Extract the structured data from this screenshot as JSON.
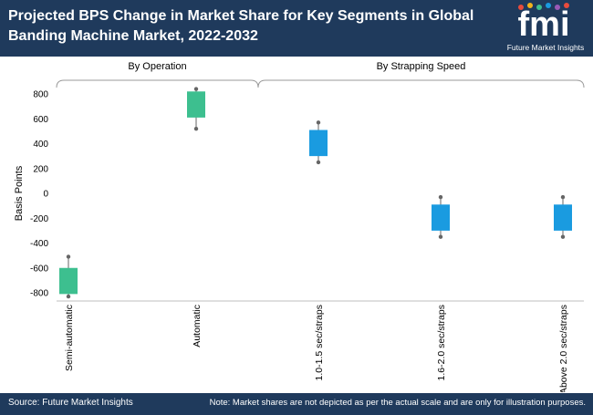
{
  "header": {
    "title": "Projected BPS Change in Market Share for Key Segments in Global Banding Machine Market, 2022-2032",
    "logo_text": "fmi",
    "logo_subtext": "Future Market Insights"
  },
  "footer": {
    "source": "Source: Future Market Insights",
    "note": "Note: Market shares are not depicted as per the actual scale and are only for illustration purposes."
  },
  "colors": {
    "header_bg": "#1f3a5c",
    "operation": "#3dbf8f",
    "strapping_speed": "#1a9be0",
    "whisker": "#7f7f7f"
  },
  "chart_data": {
    "type": "box",
    "title": "Projected BPS Change in Market Share for Key Segments in Global Banding Machine Market, 2022-2032",
    "ylabel": "Basis Points",
    "ylim": [
      -850,
      850
    ],
    "yticks": [
      800,
      600,
      400,
      200,
      0,
      -200,
      -400,
      -600,
      -800
    ],
    "groups": [
      {
        "name": "By Operation",
        "categories": [
          "Semi-automatic",
          "Automatic"
        ]
      },
      {
        "name": "By Strapping Speed",
        "categories": [
          "1.0-1.5 sec/straps",
          "1.6-2.0 sec/straps",
          "Above 2.0 sec/straps"
        ]
      }
    ],
    "categories": [
      "Semi-automatic",
      "Automatic",
      "1.0-1.5 sec/straps",
      "1.6-2.0 sec/straps",
      "Above 2.0 sec/straps"
    ],
    "boxes": [
      {
        "category": "Semi-automatic",
        "group": "By Operation",
        "min": -830,
        "q1": -810,
        "q3": -600,
        "max": -510
      },
      {
        "category": "Automatic",
        "group": "By Operation",
        "min": 520,
        "q1": 610,
        "q3": 820,
        "max": 840
      },
      {
        "category": "1.0-1.5 sec/straps",
        "group": "By Strapping Speed",
        "min": 250,
        "q1": 300,
        "q3": 510,
        "max": 570
      },
      {
        "category": "1.6-2.0 sec/straps",
        "group": "By Strapping Speed",
        "min": -350,
        "q1": -300,
        "q3": -90,
        "max": -30
      },
      {
        "category": "Above 2.0 sec/straps",
        "group": "By Strapping Speed",
        "min": -350,
        "q1": -300,
        "q3": -90,
        "max": -30
      }
    ]
  }
}
